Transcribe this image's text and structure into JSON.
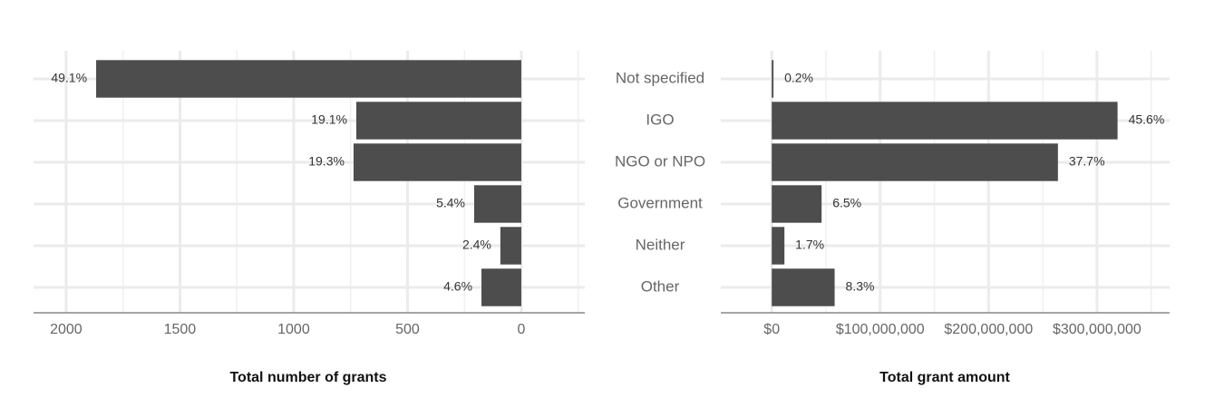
{
  "chart_data": [
    {
      "type": "bar",
      "orientation": "horizontal",
      "x_reversed": true,
      "xlabel": "Total number of grants",
      "values": [
        1868,
        725,
        737,
        207,
        92,
        175
      ],
      "share_labels": [
        "49.1%",
        "19.1%",
        "19.3%",
        "5.4%",
        "2.4%",
        "4.6%"
      ],
      "color": "#4d4d4d",
      "xlim": [
        2143,
        -279
      ],
      "xticks": [
        2000,
        1500,
        1000,
        500,
        0
      ],
      "minor_xticks": [
        1750,
        1250,
        750,
        250,
        -250
      ],
      "grid": true
    },
    {
      "type": "bar",
      "orientation": "horizontal",
      "x_reversed": false,
      "xlabel": "Total grant amount",
      "categories": [
        "Not specified",
        "IGO",
        "NGO or NPO",
        "Government",
        "Neither",
        "Other"
      ],
      "values": [
        1600000,
        319000000,
        264000000,
        46000000,
        11700000,
        58000000
      ],
      "share_labels": [
        "0.2%",
        "45.6%",
        "37.7%",
        "6.5%",
        "1.7%",
        "8.3%"
      ],
      "color": "#4d4d4d",
      "xlim": [
        -47000000,
        367000000
      ],
      "xticks": [
        {
          "value": 0,
          "label": "$0"
        },
        {
          "value": 100000000,
          "label": "$100,000,000"
        },
        {
          "value": 200000000,
          "label": "$200,000,000"
        },
        {
          "value": 300000000,
          "label": "$300,000,000"
        }
      ],
      "minor_xticks": [
        50000000,
        150000000,
        250000000,
        350000000
      ],
      "grid": true
    }
  ]
}
